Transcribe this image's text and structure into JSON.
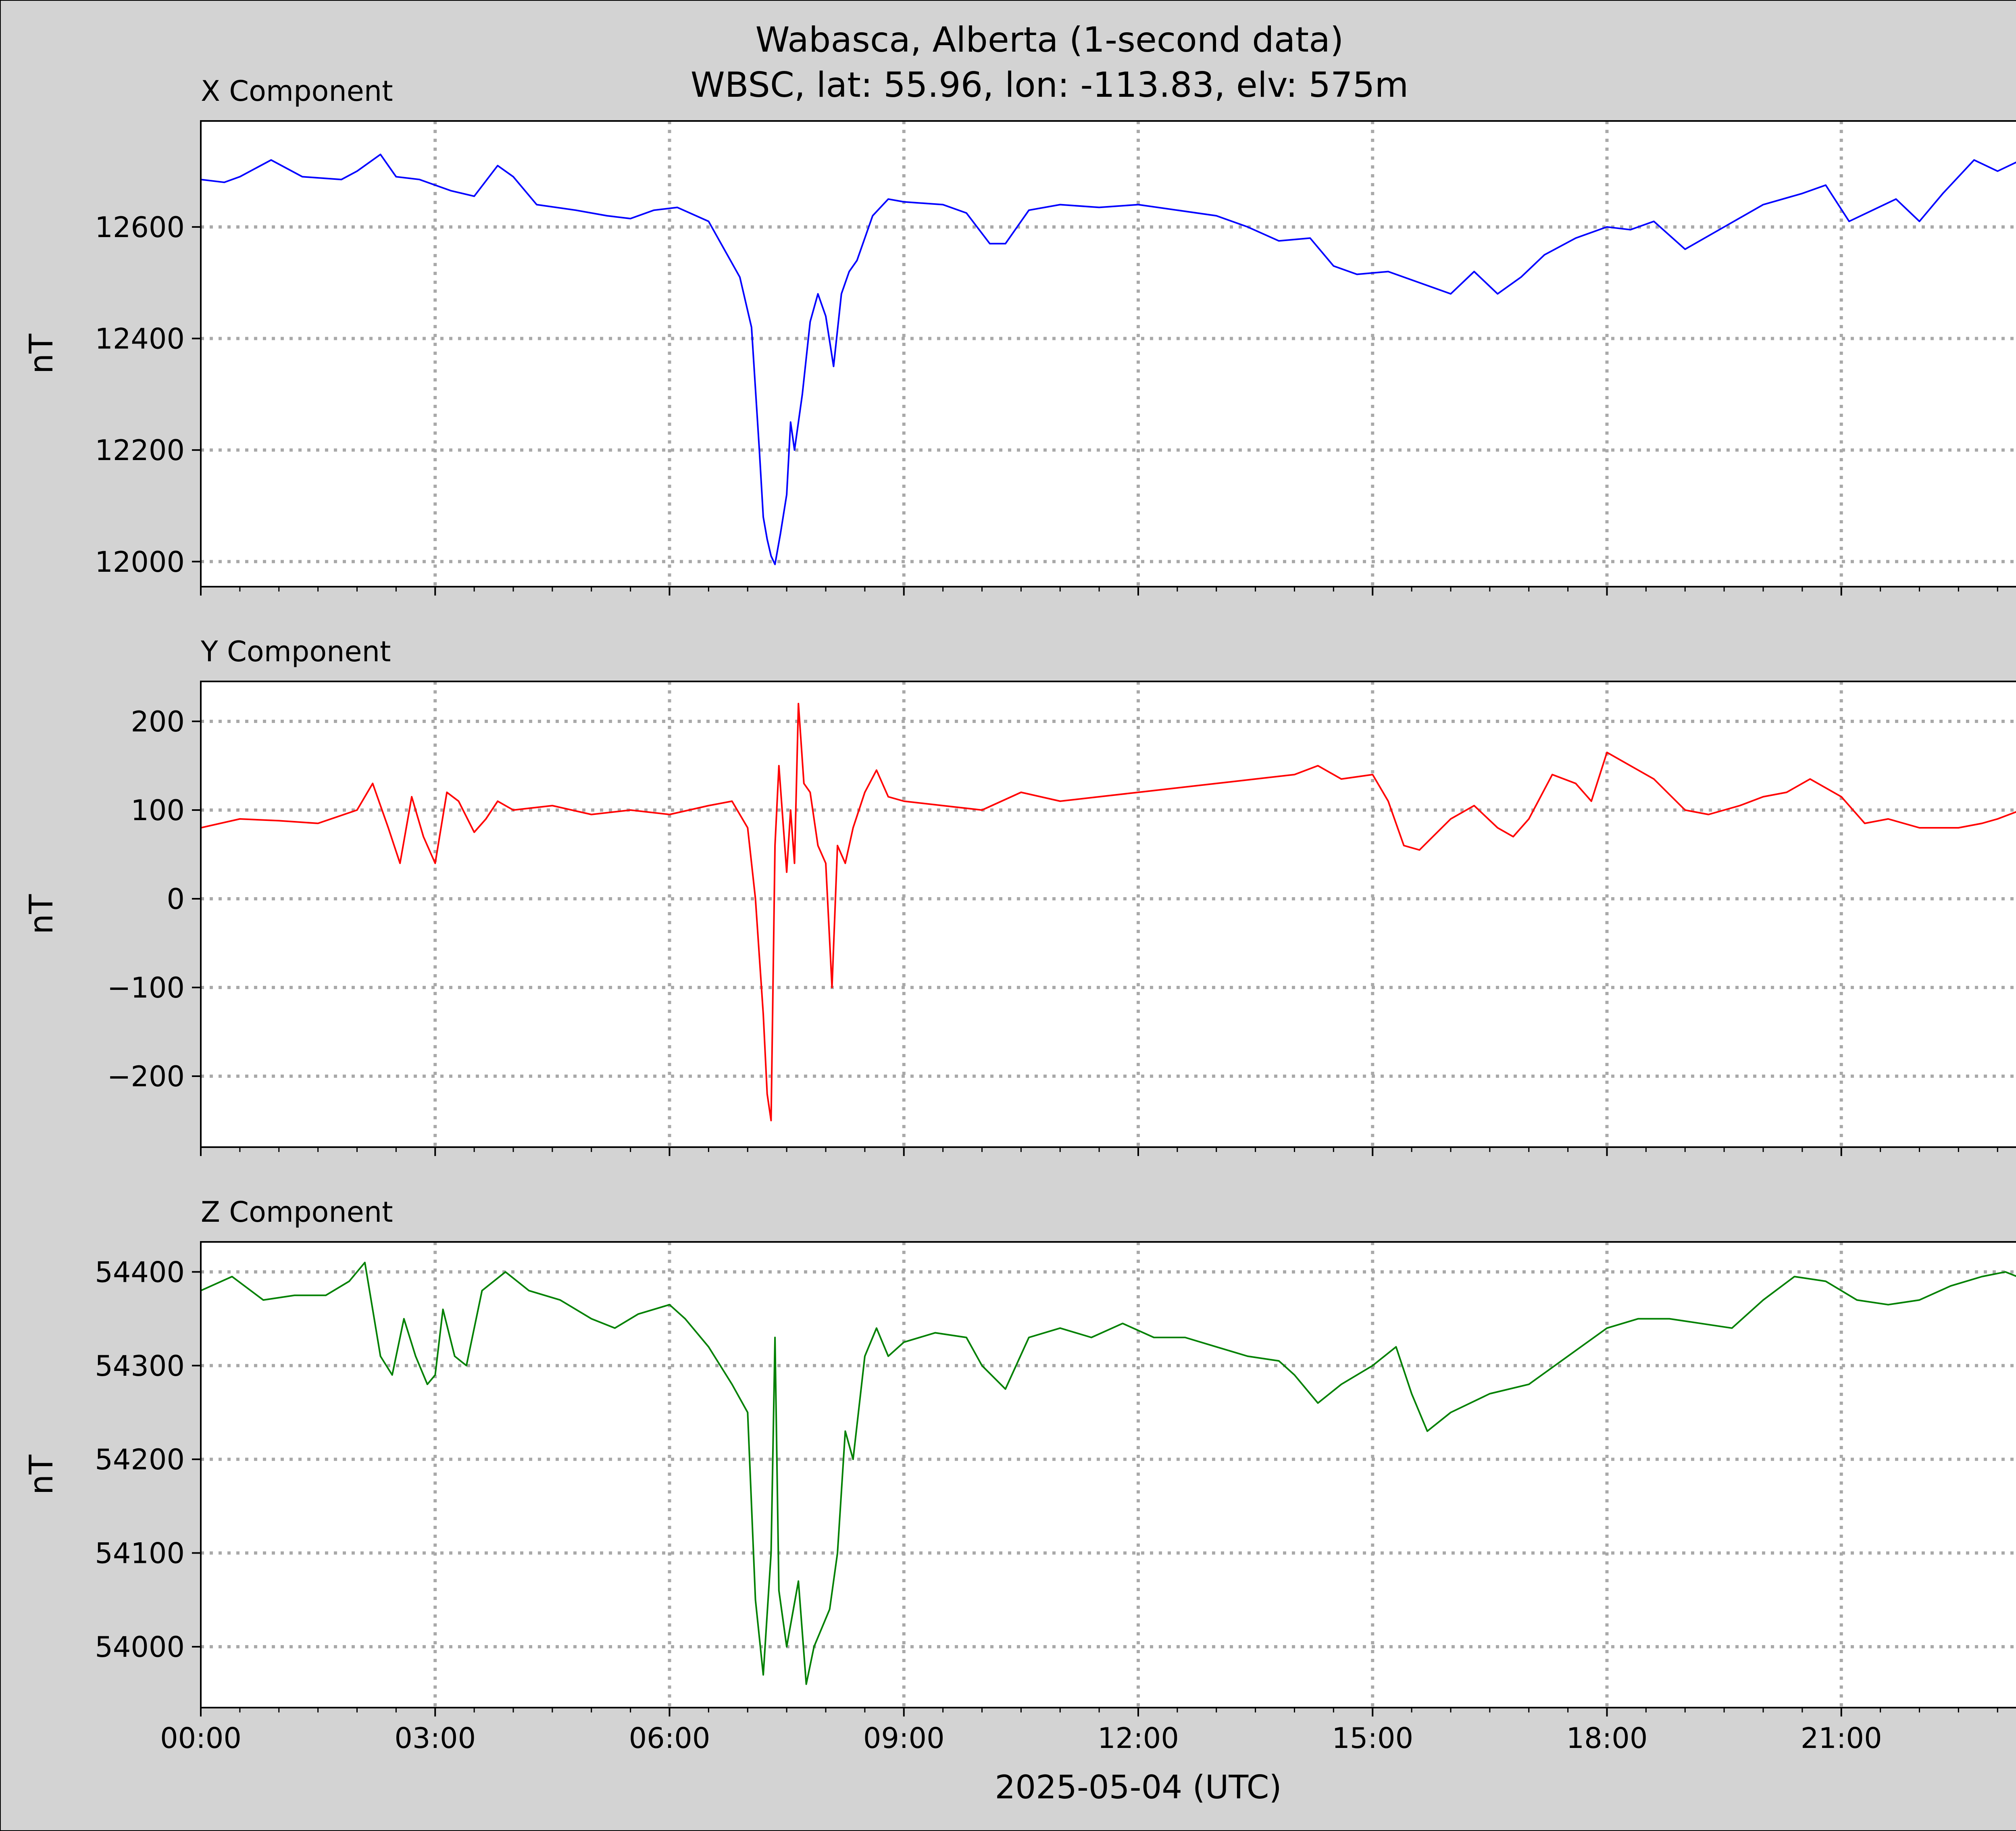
{
  "chart_data": {
    "type": "line",
    "title": "Wabasca, Alberta (1-second data)",
    "subtitle": "WBSC, lat: 55.96, lon: -113.83, elv: 575m",
    "xlabel": "2025-05-04 (UTC)",
    "x_tick_labels": [
      "00:00",
      "03:00",
      "06:00",
      "09:00",
      "12:00",
      "15:00",
      "18:00",
      "21:00"
    ],
    "xlim_hours": [
      0,
      24
    ],
    "grid": true,
    "legend": "none",
    "panels": [
      {
        "name": "X Component",
        "ylabel": "nT",
        "color": "#0000ff",
        "ylim": [
          11955,
          12790
        ],
        "y_ticks": [
          12000,
          12200,
          12400,
          12600
        ],
        "x_hours": [
          0,
          0.3,
          0.5,
          0.9,
          1.3,
          1.8,
          2.0,
          2.3,
          2.5,
          2.8,
          3.0,
          3.2,
          3.5,
          3.8,
          4.0,
          4.3,
          4.8,
          5.2,
          5.5,
          5.8,
          6.1,
          6.5,
          6.7,
          6.9,
          7.05,
          7.15,
          7.2,
          7.25,
          7.3,
          7.35,
          7.42,
          7.5,
          7.55,
          7.6,
          7.7,
          7.8,
          7.9,
          8.0,
          8.1,
          8.2,
          8.3,
          8.4,
          8.6,
          8.8,
          9.0,
          9.5,
          9.8,
          10.1,
          10.3,
          10.6,
          11.0,
          11.5,
          12.0,
          12.5,
          13.0,
          13.4,
          13.8,
          14.2,
          14.5,
          14.8,
          15.2,
          15.6,
          16.0,
          16.3,
          16.6,
          16.9,
          17.2,
          17.6,
          18.0,
          18.3,
          18.6,
          19.0,
          19.5,
          20.0,
          20.5,
          20.8,
          21.1,
          21.4,
          21.7,
          22.0,
          22.3,
          22.7,
          23.0,
          23.3,
          23.6,
          24.0
        ],
        "values": [
          12685,
          12680,
          12690,
          12720,
          12690,
          12685,
          12700,
          12730,
          12690,
          12685,
          12675,
          12665,
          12655,
          12710,
          12690,
          12640,
          12630,
          12620,
          12615,
          12630,
          12635,
          12610,
          12560,
          12510,
          12420,
          12200,
          12080,
          12040,
          12010,
          11995,
          12050,
          12120,
          12250,
          12200,
          12300,
          12430,
          12480,
          12440,
          12350,
          12480,
          12520,
          12540,
          12620,
          12650,
          12645,
          12640,
          12625,
          12570,
          12570,
          12630,
          12640,
          12635,
          12640,
          12630,
          12620,
          12600,
          12575,
          12580,
          12530,
          12515,
          12520,
          12500,
          12480,
          12520,
          12480,
          12510,
          12550,
          12580,
          12600,
          12595,
          12610,
          12560,
          12600,
          12640,
          12660,
          12675,
          12610,
          12630,
          12650,
          12610,
          12660,
          12720,
          12700,
          12720,
          12740,
          12690
        ]
      },
      {
        "name": "Y Component",
        "ylabel": "nT",
        "color": "#ff0000",
        "ylim": [
          -280,
          245
        ],
        "y_ticks": [
          -200,
          -100,
          0,
          100,
          200
        ],
        "x_hours": [
          0,
          0.5,
          1.0,
          1.5,
          2.0,
          2.2,
          2.4,
          2.55,
          2.7,
          2.85,
          3.0,
          3.15,
          3.3,
          3.5,
          3.65,
          3.8,
          4.0,
          4.5,
          5.0,
          5.5,
          6.0,
          6.5,
          6.8,
          7.0,
          7.1,
          7.2,
          7.25,
          7.3,
          7.35,
          7.4,
          7.5,
          7.55,
          7.6,
          7.65,
          7.72,
          7.8,
          7.9,
          8.0,
          8.08,
          8.15,
          8.25,
          8.35,
          8.5,
          8.65,
          8.8,
          9.0,
          9.5,
          10.0,
          10.5,
          11.0,
          11.5,
          12.0,
          12.5,
          13.0,
          13.5,
          14.0,
          14.3,
          14.6,
          15.0,
          15.2,
          15.4,
          15.6,
          16.0,
          16.3,
          16.6,
          16.8,
          17.0,
          17.3,
          17.6,
          17.8,
          18.0,
          18.3,
          18.6,
          19.0,
          19.3,
          19.7,
          20.0,
          20.3,
          20.6,
          21.0,
          21.3,
          21.6,
          22.0,
          22.5,
          22.8,
          23.0,
          23.3,
          23.6,
          24.0
        ],
        "values": [
          80,
          90,
          88,
          85,
          100,
          130,
          80,
          40,
          115,
          70,
          40,
          120,
          110,
          75,
          90,
          110,
          100,
          105,
          95,
          100,
          95,
          105,
          110,
          80,
          0,
          -130,
          -220,
          -250,
          60,
          150,
          30,
          100,
          40,
          220,
          130,
          120,
          60,
          40,
          -100,
          60,
          40,
          80,
          120,
          145,
          115,
          110,
          105,
          100,
          120,
          110,
          115,
          120,
          125,
          130,
          135,
          140,
          150,
          135,
          140,
          110,
          60,
          55,
          90,
          105,
          80,
          70,
          90,
          140,
          130,
          110,
          165,
          150,
          135,
          100,
          95,
          105,
          115,
          120,
          135,
          115,
          85,
          90,
          80,
          80,
          85,
          90,
          100,
          95,
          100
        ]
      },
      {
        "name": "Z Component",
        "ylabel": "nT",
        "color": "#008000",
        "ylim": [
          53935,
          54432
        ],
        "y_ticks": [
          54000,
          54100,
          54200,
          54300,
          54400
        ],
        "x_hours": [
          0,
          0.4,
          0.8,
          1.2,
          1.6,
          1.9,
          2.1,
          2.3,
          2.45,
          2.6,
          2.75,
          2.9,
          3.0,
          3.1,
          3.25,
          3.4,
          3.6,
          3.9,
          4.2,
          4.6,
          5.0,
          5.3,
          5.6,
          6.0,
          6.2,
          6.5,
          6.8,
          7.0,
          7.1,
          7.2,
          7.3,
          7.35,
          7.4,
          7.5,
          7.65,
          7.75,
          7.85,
          7.95,
          8.05,
          8.15,
          8.25,
          8.35,
          8.5,
          8.65,
          8.8,
          9.0,
          9.4,
          9.8,
          10.0,
          10.3,
          10.6,
          11.0,
          11.4,
          11.8,
          12.2,
          12.6,
          13.0,
          13.4,
          13.8,
          14.0,
          14.3,
          14.6,
          15.0,
          15.3,
          15.5,
          15.7,
          16.0,
          16.5,
          17.0,
          17.5,
          18.0,
          18.4,
          18.8,
          19.2,
          19.6,
          20.0,
          20.4,
          20.8,
          21.2,
          21.6,
          22.0,
          22.4,
          22.8,
          23.1,
          23.4,
          23.7,
          24.0
        ],
        "values": [
          54380,
          54395,
          54370,
          54375,
          54375,
          54390,
          54410,
          54310,
          54290,
          54350,
          54310,
          54280,
          54290,
          54360,
          54310,
          54300,
          54380,
          54400,
          54380,
          54370,
          54350,
          54340,
          54355,
          54365,
          54350,
          54320,
          54280,
          54250,
          54050,
          53970,
          54100,
          54330,
          54060,
          54000,
          54070,
          53960,
          54000,
          54020,
          54040,
          54100,
          54230,
          54200,
          54310,
          54340,
          54310,
          54325,
          54335,
          54330,
          54300,
          54275,
          54330,
          54340,
          54330,
          54345,
          54330,
          54330,
          54320,
          54310,
          54305,
          54290,
          54260,
          54280,
          54300,
          54320,
          54270,
          54230,
          54250,
          54270,
          54280,
          54310,
          54340,
          54350,
          54350,
          54345,
          54340,
          54370,
          54395,
          54390,
          54370,
          54365,
          54370,
          54385,
          54395,
          54400,
          54390,
          54380,
          54375
        ]
      }
    ]
  }
}
